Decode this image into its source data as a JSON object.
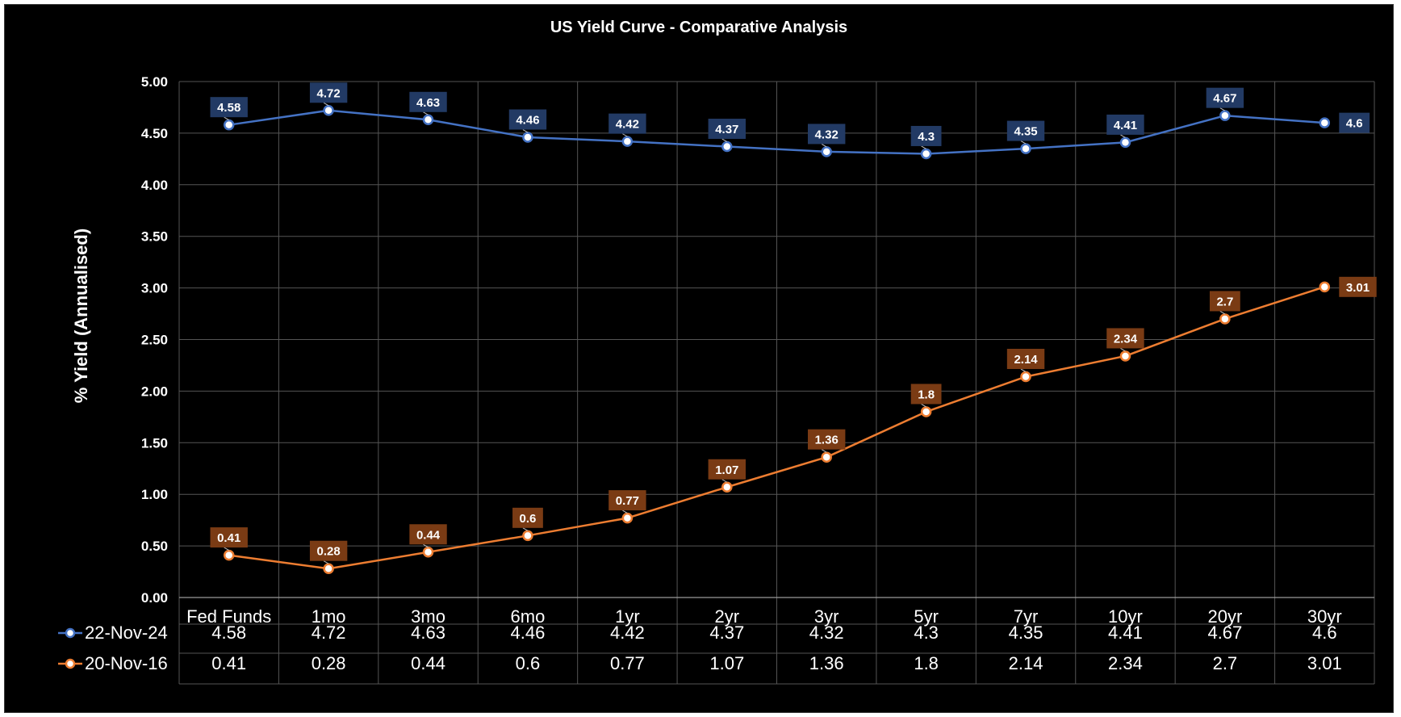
{
  "chart_data": {
    "type": "line",
    "title": "US Yield Curve - Comparative Analysis",
    "ylabel": "% Yield (Annualised)",
    "xlabel": "",
    "ylim": [
      0,
      5
    ],
    "ytick_step": 0.5,
    "yticks": [
      "0.00",
      "0.50",
      "1.00",
      "1.50",
      "2.00",
      "2.50",
      "3.00",
      "3.50",
      "4.00",
      "4.50",
      "5.00"
    ],
    "grid": true,
    "legend": "data-table-left",
    "categories": [
      "Fed Funds",
      "1mo",
      "3mo",
      "6mo",
      "1yr",
      "2yr",
      "3yr",
      "5yr",
      "7yr",
      "10yr",
      "20yr",
      "30yr"
    ],
    "series": [
      {
        "name": "22-Nov-24",
        "color": "#4472c4",
        "label_bg": "#223a64",
        "values": [
          4.58,
          4.72,
          4.63,
          4.46,
          4.42,
          4.37,
          4.32,
          4.3,
          4.35,
          4.41,
          4.67,
          4.6
        ],
        "labels": [
          "4.58",
          "4.72",
          "4.63",
          "4.46",
          "4.42",
          "4.37",
          "4.32",
          "4.3",
          "4.35",
          "4.41",
          "4.67",
          "4.6"
        ]
      },
      {
        "name": "20-Nov-16",
        "color": "#ed7d31",
        "label_bg": "#7a3b14",
        "values": [
          0.41,
          0.28,
          0.44,
          0.6,
          0.77,
          1.07,
          1.36,
          1.8,
          2.14,
          2.34,
          2.7,
          3.01
        ],
        "labels": [
          "0.41",
          "0.28",
          "0.44",
          "0.6",
          "0.77",
          "1.07",
          "1.36",
          "1.8",
          "2.14",
          "2.34",
          "2.7",
          "3.01"
        ]
      }
    ]
  }
}
